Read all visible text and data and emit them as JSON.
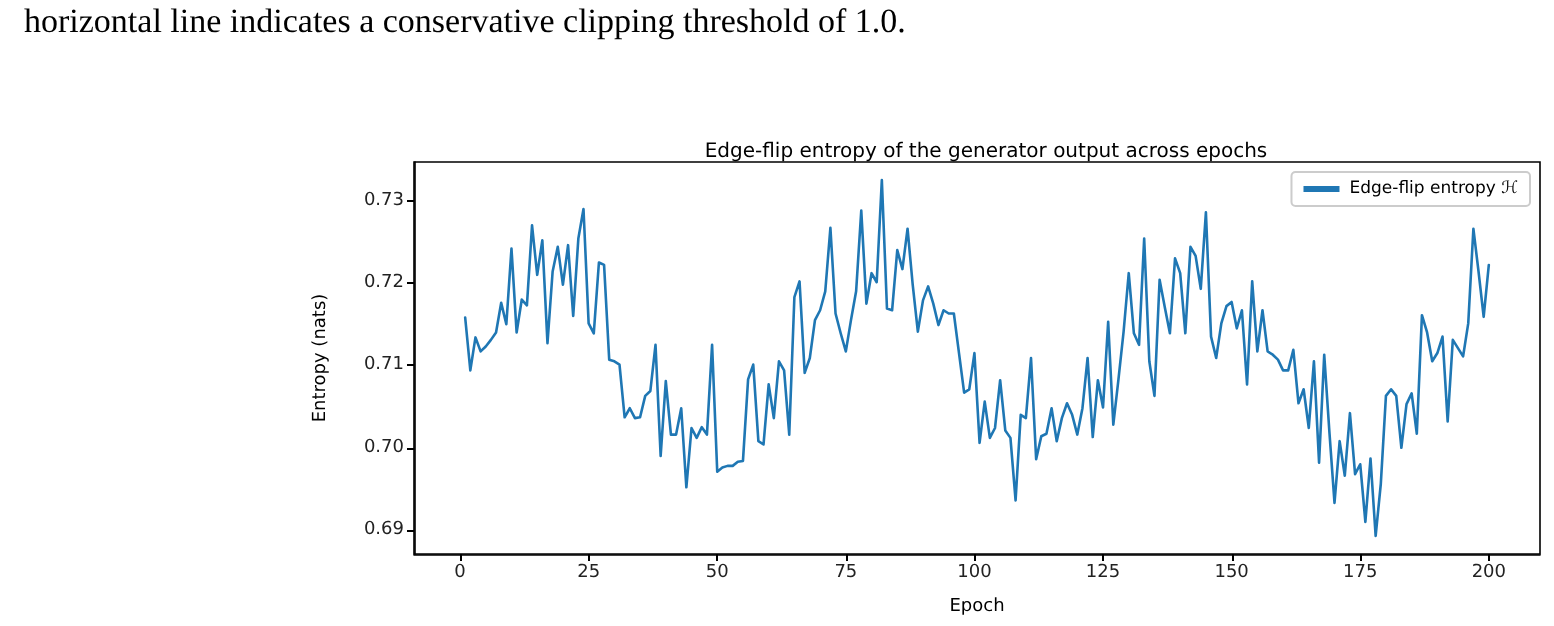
{
  "chart_data": {
    "type": "line",
    "title": "Edge-flip entropy of the generator output across epochs",
    "xlabel": "Epoch",
    "ylabel": "Entropy (nats)",
    "annotations": [
      "horizontal line indicates a conservative clipping threshold of 1.0."
    ],
    "x": [
      1,
      2,
      3,
      4,
      5,
      6,
      7,
      8,
      9,
      10,
      11,
      12,
      13,
      14,
      15,
      16,
      17,
      18,
      19,
      20,
      21,
      22,
      23,
      24,
      25,
      26,
      27,
      28,
      29,
      30,
      31,
      32,
      33,
      34,
      35,
      36,
      37,
      38,
      39,
      40,
      41,
      42,
      43,
      44,
      45,
      46,
      47,
      48,
      49,
      50,
      51,
      52,
      53,
      54,
      55,
      56,
      57,
      58,
      59,
      60,
      61,
      62,
      63,
      64,
      65,
      66,
      67,
      68,
      69,
      70,
      71,
      72,
      73,
      74,
      75,
      76,
      77,
      78,
      79,
      80,
      81,
      82,
      83,
      84,
      85,
      86,
      87,
      88,
      89,
      90,
      91,
      92,
      93,
      94,
      95,
      96,
      97,
      98,
      99,
      100,
      101,
      102,
      103,
      104,
      105,
      106,
      107,
      108,
      109,
      110,
      111,
      112,
      113,
      114,
      115,
      116,
      117,
      118,
      119,
      120,
      121,
      122,
      123,
      124,
      125,
      126,
      127,
      128,
      129,
      130,
      131,
      132,
      133,
      134,
      135,
      136,
      137,
      138,
      139,
      140,
      141,
      142,
      143,
      144,
      145,
      146,
      147,
      148,
      149,
      150,
      151,
      152,
      153,
      154,
      155,
      156,
      157,
      158,
      159,
      160,
      161,
      162,
      163,
      164,
      165,
      166,
      167,
      168,
      169,
      170,
      171,
      172,
      173,
      174,
      175,
      176,
      177,
      178,
      179,
      180,
      181,
      182,
      183,
      184,
      185,
      186,
      187,
      188,
      189,
      190,
      191,
      192,
      193,
      194,
      195,
      196,
      197,
      198,
      199,
      200
    ],
    "series": [
      {
        "name": "Edge-flip entropy ℋ",
        "color": "#1f77b4",
        "values": [
          0.7158,
          0.7094,
          0.7134,
          0.7117,
          0.7123,
          0.7131,
          0.714,
          0.7176,
          0.715,
          0.7242,
          0.714,
          0.718,
          0.7173,
          0.727,
          0.721,
          0.7252,
          0.7127,
          0.7214,
          0.7244,
          0.7198,
          0.7246,
          0.716,
          0.7254,
          0.729,
          0.7151,
          0.7139,
          0.7225,
          0.7222,
          0.7107,
          0.7105,
          0.7101,
          0.7037,
          0.7048,
          0.7036,
          0.7037,
          0.7063,
          0.7069,
          0.7125,
          0.699,
          0.7081,
          0.7016,
          0.7016,
          0.7048,
          0.6952,
          0.7024,
          0.7012,
          0.7025,
          0.7016,
          0.7125,
          0.6971,
          0.6976,
          0.6978,
          0.6978,
          0.6983,
          0.6984,
          0.7083,
          0.7101,
          0.7008,
          0.7004,
          0.7077,
          0.7036,
          0.7105,
          0.7094,
          0.7016,
          0.7183,
          0.7202,
          0.7091,
          0.7109,
          0.7155,
          0.7167,
          0.719,
          0.7267,
          0.7163,
          0.7139,
          0.7117,
          0.7155,
          0.719,
          0.7288,
          0.7175,
          0.7212,
          0.7201,
          0.7325,
          0.7169,
          0.7167,
          0.724,
          0.7217,
          0.7266,
          0.7198,
          0.7141,
          0.7179,
          0.7196,
          0.7175,
          0.7149,
          0.7167,
          0.7163,
          0.7163,
          0.7115,
          0.7067,
          0.7071,
          0.7115,
          0.7006,
          0.7056,
          0.7012,
          0.7024,
          0.7082,
          0.7021,
          0.7012,
          0.6936,
          0.704,
          0.7036,
          0.7109,
          0.6986,
          0.7014,
          0.7017,
          0.7048,
          0.7008,
          0.7036,
          0.7054,
          0.704,
          0.7016,
          0.7048,
          0.7109,
          0.7013,
          0.7082,
          0.7049,
          0.7153,
          0.7028,
          0.7083,
          0.7141,
          0.7212,
          0.7139,
          0.7125,
          0.7254,
          0.7105,
          0.7063,
          0.7204,
          0.7171,
          0.7139,
          0.723,
          0.7212,
          0.7139,
          0.7244,
          0.7233,
          0.7193,
          0.7286,
          0.7135,
          0.7109,
          0.7151,
          0.7172,
          0.7177,
          0.7145,
          0.7167,
          0.7077,
          0.7202,
          0.7117,
          0.7167,
          0.7117,
          0.7113,
          0.7107,
          0.7094,
          0.7094,
          0.7119,
          0.7054,
          0.7071,
          0.7024,
          0.7105,
          0.6982,
          0.7113,
          0.702,
          0.6933,
          0.7008,
          0.6966,
          0.7042,
          0.6968,
          0.698,
          0.691,
          0.6987,
          0.6893,
          0.6956,
          0.7063,
          0.7071,
          0.7063,
          0.7,
          0.7053,
          0.7066,
          0.7017,
          0.7161,
          0.714,
          0.7105,
          0.7115,
          0.7135,
          0.7032,
          0.7131,
          0.7121,
          0.7111,
          0.7151,
          0.7266,
          0.7214,
          0.7159,
          0.7222
        ]
      }
    ],
    "xlim": [
      -8.95,
      209.95
    ],
    "xticks": [
      0,
      25,
      50,
      75,
      100,
      125,
      150,
      175,
      200
    ],
    "ylim": [
      0.6871,
      0.7347
    ],
    "yticks": [
      0.69,
      {
        "value": 0.7,
        "label": "0.70"
      },
      0.71,
      0.72,
      0.73
    ],
    "grid": false,
    "legend": "top right",
    "marker": "none",
    "line_style": "solid"
  }
}
